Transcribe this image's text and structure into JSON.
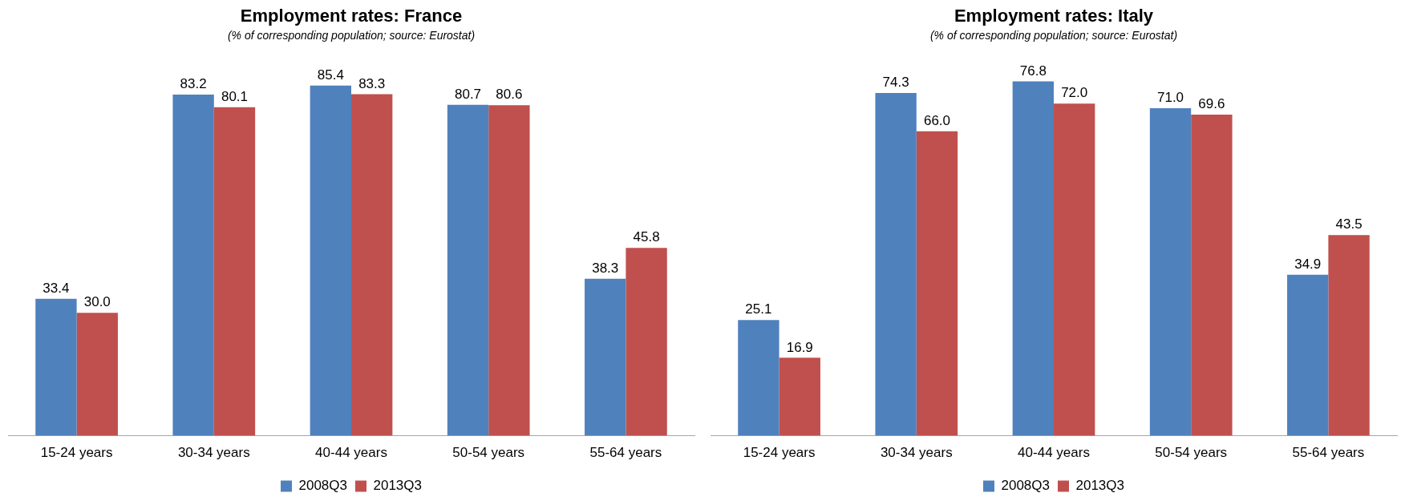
{
  "chart_data": [
    {
      "type": "bar",
      "title": "Employment rates: France",
      "subtitle": "(% of corresponding population; source: Eurostat)",
      "categories": [
        "15-24 years",
        "30-34 years",
        "40-44 years",
        "50-54 years",
        "55-64 years"
      ],
      "series": [
        {
          "name": "2008Q3",
          "color": "#4f81bd",
          "values": [
            33.4,
            83.2,
            85.4,
            80.7,
            38.3
          ],
          "value_labels": [
            "33.4",
            "83.2",
            "85.4",
            "80.7",
            "38.3"
          ]
        },
        {
          "name": "2013Q3",
          "color": "#c0504d",
          "values": [
            30.0,
            80.1,
            83.3,
            80.6,
            45.8
          ],
          "value_labels": [
            "30.0",
            "80.1",
            "83.3",
            "80.6",
            "45.8"
          ]
        }
      ],
      "legend": "bottom",
      "grid": false,
      "tick_labels": "x"
    },
    {
      "type": "bar",
      "title": "Employment rates: Italy",
      "subtitle": "(% of corresponding population; source: Eurostat)",
      "categories": [
        "15-24 years",
        "30-34 years",
        "40-44 years",
        "50-54 years",
        "55-64 years"
      ],
      "series": [
        {
          "name": "2008Q3",
          "color": "#4f81bd",
          "values": [
            25.1,
            74.3,
            76.8,
            71.0,
            34.9
          ],
          "value_labels": [
            "25.1",
            "74.3",
            "76.8",
            "71.0",
            "34.9"
          ]
        },
        {
          "name": "2013Q3",
          "color": "#c0504d",
          "values": [
            16.9,
            66.0,
            72.0,
            69.6,
            43.5
          ],
          "value_labels": [
            "16.9",
            "66.0",
            "72.0",
            "69.6",
            "43.5"
          ]
        }
      ],
      "legend": "bottom",
      "grid": false,
      "tick_labels": "x"
    }
  ]
}
